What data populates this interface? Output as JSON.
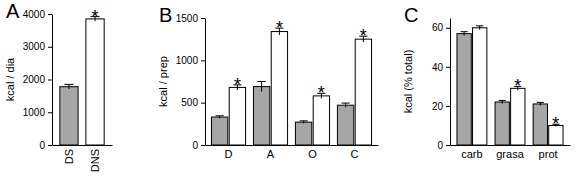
{
  "chart_data": [
    {
      "type": "bar",
      "title": "A",
      "ylabel": "kcal / dia",
      "categories": [
        "DS",
        "DNS"
      ],
      "series": [
        {
          "colors": [
            "#a6a6a6",
            "#ffffff"
          ],
          "values": [
            1780,
            3850
          ],
          "errors": [
            70,
            70
          ],
          "annotations": [
            null,
            "*"
          ]
        }
      ],
      "ylim": [
        0,
        4000
      ],
      "yticks": [
        0,
        1000,
        2000,
        3000,
        4000
      ]
    },
    {
      "type": "bar",
      "title": "B",
      "ylabel": "kcal / prep",
      "categories": [
        "D",
        "A",
        "O",
        "C"
      ],
      "series": [
        {
          "color": "#a6a6a6",
          "values": [
            330,
            690,
            270,
            470
          ],
          "errors": [
            15,
            60,
            15,
            25
          ],
          "annotations": [
            null,
            null,
            null,
            null
          ]
        },
        {
          "color": "#ffffff",
          "values": [
            680,
            1340,
            580,
            1250
          ],
          "errors": [
            30,
            40,
            30,
            35
          ],
          "annotations": [
            "*",
            "*",
            "*",
            "*"
          ]
        }
      ],
      "ylim": [
        0,
        1500
      ],
      "yticks": [
        0,
        500,
        1000,
        1500
      ]
    },
    {
      "type": "bar",
      "title": "C",
      "ylabel": "kcal (% total)",
      "categories": [
        "carb",
        "grasa",
        "prot"
      ],
      "series": [
        {
          "color": "#a6a6a6",
          "values": [
            57,
            22,
            21
          ],
          "errors": [
            1,
            0.8,
            0.8
          ],
          "annotations": [
            null,
            null,
            null
          ]
        },
        {
          "color": "#ffffff",
          "values": [
            60,
            29,
            10
          ],
          "errors": [
            1,
            1,
            0.6
          ],
          "annotations": [
            null,
            "*",
            "*"
          ]
        }
      ],
      "ylim": [
        0,
        65
      ],
      "yticks": [
        0,
        20,
        40,
        60
      ]
    }
  ]
}
